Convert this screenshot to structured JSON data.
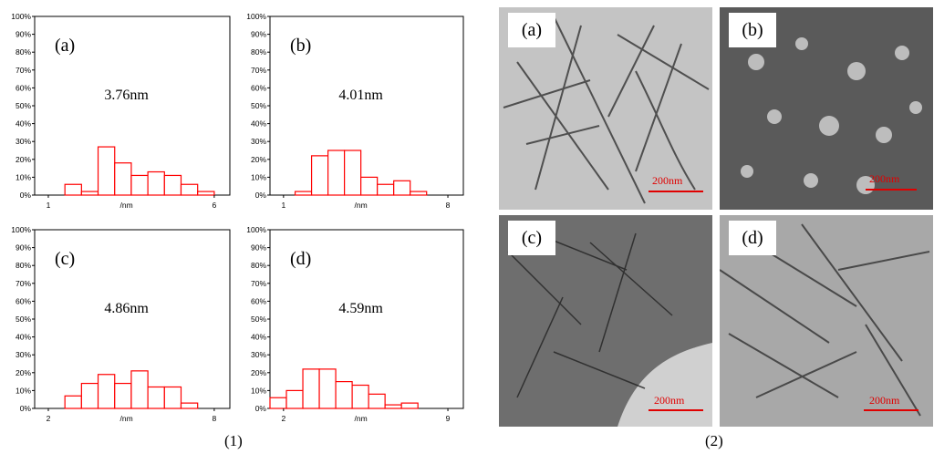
{
  "figure_captions": {
    "left": "(1)",
    "right": "(2)"
  },
  "chart_data": [
    {
      "type": "bar",
      "panel": "(a)",
      "annotation": "3.76nm",
      "xlabel": "/nm",
      "x_ticks": [
        "1",
        "6"
      ],
      "y_ticks": [
        "0%",
        "10%",
        "20%",
        "30%",
        "40%",
        "50%",
        "60%",
        "70%",
        "80%",
        "90%",
        "100%"
      ],
      "ylim": [
        0,
        100
      ],
      "values": [
        6,
        2,
        27,
        18,
        11,
        13,
        11,
        6,
        2
      ],
      "bar_color": "#ff0000"
    },
    {
      "type": "bar",
      "panel": "(b)",
      "annotation": "4.01nm",
      "xlabel": "/nm",
      "x_ticks": [
        "1",
        "8"
      ],
      "y_ticks": [
        "0%",
        "10%",
        "20%",
        "30%",
        "40%",
        "50%",
        "60%",
        "70%",
        "80%",
        "90%",
        "100%"
      ],
      "ylim": [
        0,
        100
      ],
      "values": [
        2,
        22,
        25,
        25,
        10,
        6,
        8,
        2
      ],
      "bar_color": "#ff0000"
    },
    {
      "type": "bar",
      "panel": "(c)",
      "annotation": "4.86nm",
      "xlabel": "/nm",
      "x_ticks": [
        "2",
        "8"
      ],
      "y_ticks": [
        "0%",
        "10%",
        "20%",
        "30%",
        "40%",
        "50%",
        "60%",
        "70%",
        "80%",
        "90%",
        "100%"
      ],
      "ylim": [
        0,
        100
      ],
      "values": [
        7,
        14,
        19,
        14,
        21,
        12,
        12,
        3
      ],
      "bar_color": "#ff0000"
    },
    {
      "type": "bar",
      "panel": "(d)",
      "annotation": "4.59nm",
      "xlabel": "/nm",
      "x_ticks": [
        "2",
        "9"
      ],
      "y_ticks": [
        "0%",
        "10%",
        "20%",
        "30%",
        "40%",
        "50%",
        "60%",
        "70%",
        "80%",
        "90%",
        "100%"
      ],
      "ylim": [
        0,
        100
      ],
      "values": [
        6,
        10,
        22,
        22,
        15,
        13,
        8,
        2,
        3
      ],
      "bar_color": "#ff0000"
    }
  ],
  "micrographs": [
    {
      "label": "(a)",
      "scale": "200nm",
      "tone": "#c4c4c4"
    },
    {
      "label": "(b)",
      "scale": "200nm",
      "tone": "#5a5a5a"
    },
    {
      "label": "(c)",
      "scale": "200nm",
      "tone": "#6e6e6e"
    },
    {
      "label": "(d)",
      "scale": "200nm",
      "tone": "#a8a8a8"
    }
  ]
}
